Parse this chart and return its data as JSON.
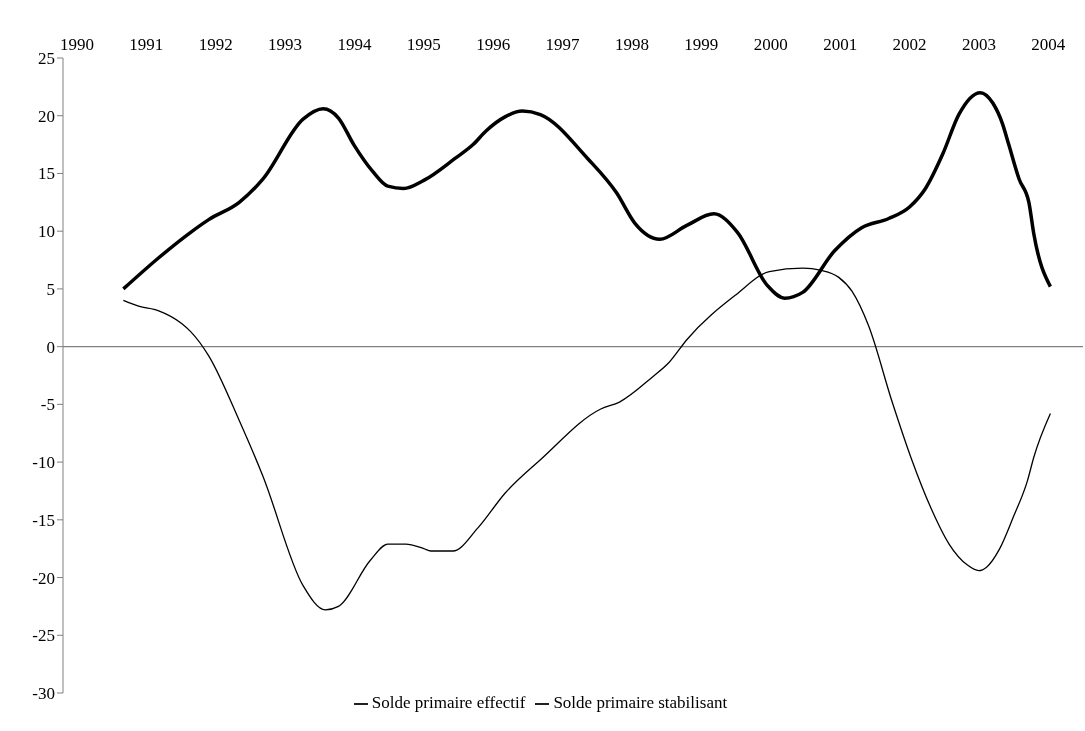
{
  "chart_data": {
    "type": "line",
    "xlim": [
      1989.8,
      2004.5
    ],
    "xticks": [
      1990,
      1991,
      1992,
      1993,
      1994,
      1995,
      1996,
      1997,
      1998,
      1999,
      2000,
      2001,
      2002,
      2003,
      2004
    ],
    "ylim": [
      -30,
      25
    ],
    "yticks": [
      -30,
      -25,
      -20,
      -15,
      -10,
      -5,
      0,
      5,
      10,
      15,
      20,
      25
    ],
    "grid": false,
    "legend": "bottom",
    "marker": "none",
    "line_style": "solid",
    "ref_lines": [
      {
        "axis": "y",
        "value": 0,
        "label": null,
        "color": "#808080"
      }
    ],
    "series": [
      {
        "name": "Solde primaire stabilisant",
        "color": "#000000",
        "x": [
          1990.67,
          1991.18,
          1991.64,
          1991.9,
          1992.34,
          1992.68,
          1993.26,
          1993.55,
          1993.77,
          1993.99,
          1994.26,
          1994.48,
          1994.71,
          1995.0,
          1995.45,
          1995.71,
          1995.9,
          1996.17,
          1996.42,
          1996.68,
          1997.36,
          1997.78,
          1998.04,
          1998.4,
          1998.79,
          1999.18,
          1999.52,
          1999.95,
          2000.2,
          2000.46,
          2000.92,
          2001.31,
          2001.7,
          2002.0,
          2002.23,
          2002.48,
          2002.71,
          2003.02,
          2003.2,
          2003.34,
          2003.43,
          2003.58,
          2003.72,
          2003.79,
          2004.03
        ],
        "values": [
          5.0,
          7.7,
          9.9,
          11.0,
          12.5,
          14.5,
          19.7,
          20.6,
          19.8,
          17.5,
          15.2,
          13.9,
          13.7,
          14.4,
          16.3,
          17.5,
          18.7,
          19.9,
          20.4,
          20.1,
          16.3,
          13.3,
          10.7,
          9.3,
          10.5,
          11.5,
          9.9,
          5.3,
          4.2,
          4.7,
          8.3,
          10.3,
          11.1,
          12.1,
          13.7,
          16.7,
          20.1,
          22.0,
          21.1,
          19.3,
          17.5,
          14.5,
          12.5,
          9.8,
          5.2
        ]
      },
      {
        "name": "Solde primaire effectif",
        "color": "#000000",
        "x": [
          1990.67,
          1990.89,
          1991.18,
          1991.51,
          1991.64,
          1991.9,
          1992.34,
          1992.68,
          1993.26,
          1993.58,
          1993.77,
          1994.23,
          1994.48,
          1994.74,
          1995.0,
          1995.1,
          1995.42,
          1995.78,
          1996.17,
          1996.68,
          1997.55,
          1997.82,
          1998.3,
          1998.53,
          1998.79,
          1999.5,
          1999.98,
          2000.46,
          2000.73,
          2000.98,
          2001.17,
          2001.41,
          2001.75,
          2002.02,
          2002.31,
          2002.57,
          2002.83,
          2003.0,
          2003.11,
          2003.3,
          2003.5,
          2003.7,
          2003.79,
          2004.03
        ],
        "values": [
          4.0,
          3.5,
          3.1,
          2.0,
          1.3,
          -0.8,
          -6.4,
          -11.2,
          -20.7,
          -22.8,
          -22.5,
          -18.5,
          -17.1,
          -17.1,
          -17.5,
          -17.7,
          -17.7,
          -15.7,
          -12.7,
          -9.8,
          -5.4,
          -4.8,
          -2.6,
          -1.4,
          0.6,
          4.5,
          6.5,
          6.8,
          6.6,
          6.0,
          4.8,
          1.8,
          -4.8,
          -9.6,
          -14.0,
          -17.1,
          -18.9,
          -19.4,
          -19.1,
          -17.5,
          -14.7,
          -11.6,
          -9.6,
          -5.8
        ]
      }
    ]
  }
}
